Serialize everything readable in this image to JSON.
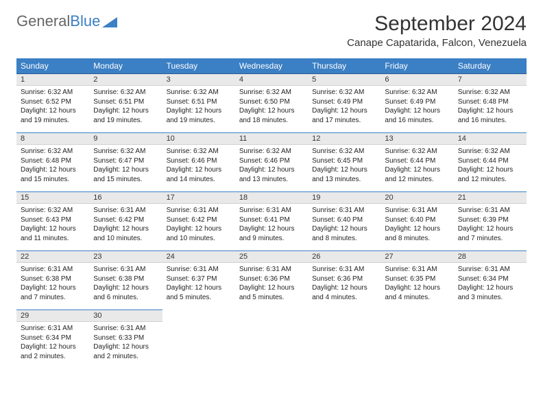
{
  "brand": {
    "part1": "General",
    "part2": "Blue"
  },
  "title": "September 2024",
  "location": "Canape Capatarida, Falcon, Venezuela",
  "colors": {
    "header_bg": "#3b7fc4",
    "header_fg": "#ffffff",
    "daynum_bg": "#e9e9e9",
    "row_border": "#3b7fc4",
    "text": "#222222"
  },
  "weekdays": [
    "Sunday",
    "Monday",
    "Tuesday",
    "Wednesday",
    "Thursday",
    "Friday",
    "Saturday"
  ],
  "weeks": [
    [
      {
        "n": "1",
        "sr": "Sunrise: 6:32 AM",
        "ss": "Sunset: 6:52 PM",
        "d1": "Daylight: 12 hours",
        "d2": "and 19 minutes."
      },
      {
        "n": "2",
        "sr": "Sunrise: 6:32 AM",
        "ss": "Sunset: 6:51 PM",
        "d1": "Daylight: 12 hours",
        "d2": "and 19 minutes."
      },
      {
        "n": "3",
        "sr": "Sunrise: 6:32 AM",
        "ss": "Sunset: 6:51 PM",
        "d1": "Daylight: 12 hours",
        "d2": "and 19 minutes."
      },
      {
        "n": "4",
        "sr": "Sunrise: 6:32 AM",
        "ss": "Sunset: 6:50 PM",
        "d1": "Daylight: 12 hours",
        "d2": "and 18 minutes."
      },
      {
        "n": "5",
        "sr": "Sunrise: 6:32 AM",
        "ss": "Sunset: 6:49 PM",
        "d1": "Daylight: 12 hours",
        "d2": "and 17 minutes."
      },
      {
        "n": "6",
        "sr": "Sunrise: 6:32 AM",
        "ss": "Sunset: 6:49 PM",
        "d1": "Daylight: 12 hours",
        "d2": "and 16 minutes."
      },
      {
        "n": "7",
        "sr": "Sunrise: 6:32 AM",
        "ss": "Sunset: 6:48 PM",
        "d1": "Daylight: 12 hours",
        "d2": "and 16 minutes."
      }
    ],
    [
      {
        "n": "8",
        "sr": "Sunrise: 6:32 AM",
        "ss": "Sunset: 6:48 PM",
        "d1": "Daylight: 12 hours",
        "d2": "and 15 minutes."
      },
      {
        "n": "9",
        "sr": "Sunrise: 6:32 AM",
        "ss": "Sunset: 6:47 PM",
        "d1": "Daylight: 12 hours",
        "d2": "and 15 minutes."
      },
      {
        "n": "10",
        "sr": "Sunrise: 6:32 AM",
        "ss": "Sunset: 6:46 PM",
        "d1": "Daylight: 12 hours",
        "d2": "and 14 minutes."
      },
      {
        "n": "11",
        "sr": "Sunrise: 6:32 AM",
        "ss": "Sunset: 6:46 PM",
        "d1": "Daylight: 12 hours",
        "d2": "and 13 minutes."
      },
      {
        "n": "12",
        "sr": "Sunrise: 6:32 AM",
        "ss": "Sunset: 6:45 PM",
        "d1": "Daylight: 12 hours",
        "d2": "and 13 minutes."
      },
      {
        "n": "13",
        "sr": "Sunrise: 6:32 AM",
        "ss": "Sunset: 6:44 PM",
        "d1": "Daylight: 12 hours",
        "d2": "and 12 minutes."
      },
      {
        "n": "14",
        "sr": "Sunrise: 6:32 AM",
        "ss": "Sunset: 6:44 PM",
        "d1": "Daylight: 12 hours",
        "d2": "and 12 minutes."
      }
    ],
    [
      {
        "n": "15",
        "sr": "Sunrise: 6:32 AM",
        "ss": "Sunset: 6:43 PM",
        "d1": "Daylight: 12 hours",
        "d2": "and 11 minutes."
      },
      {
        "n": "16",
        "sr": "Sunrise: 6:31 AM",
        "ss": "Sunset: 6:42 PM",
        "d1": "Daylight: 12 hours",
        "d2": "and 10 minutes."
      },
      {
        "n": "17",
        "sr": "Sunrise: 6:31 AM",
        "ss": "Sunset: 6:42 PM",
        "d1": "Daylight: 12 hours",
        "d2": "and 10 minutes."
      },
      {
        "n": "18",
        "sr": "Sunrise: 6:31 AM",
        "ss": "Sunset: 6:41 PM",
        "d1": "Daylight: 12 hours",
        "d2": "and 9 minutes."
      },
      {
        "n": "19",
        "sr": "Sunrise: 6:31 AM",
        "ss": "Sunset: 6:40 PM",
        "d1": "Daylight: 12 hours",
        "d2": "and 8 minutes."
      },
      {
        "n": "20",
        "sr": "Sunrise: 6:31 AM",
        "ss": "Sunset: 6:40 PM",
        "d1": "Daylight: 12 hours",
        "d2": "and 8 minutes."
      },
      {
        "n": "21",
        "sr": "Sunrise: 6:31 AM",
        "ss": "Sunset: 6:39 PM",
        "d1": "Daylight: 12 hours",
        "d2": "and 7 minutes."
      }
    ],
    [
      {
        "n": "22",
        "sr": "Sunrise: 6:31 AM",
        "ss": "Sunset: 6:38 PM",
        "d1": "Daylight: 12 hours",
        "d2": "and 7 minutes."
      },
      {
        "n": "23",
        "sr": "Sunrise: 6:31 AM",
        "ss": "Sunset: 6:38 PM",
        "d1": "Daylight: 12 hours",
        "d2": "and 6 minutes."
      },
      {
        "n": "24",
        "sr": "Sunrise: 6:31 AM",
        "ss": "Sunset: 6:37 PM",
        "d1": "Daylight: 12 hours",
        "d2": "and 5 minutes."
      },
      {
        "n": "25",
        "sr": "Sunrise: 6:31 AM",
        "ss": "Sunset: 6:36 PM",
        "d1": "Daylight: 12 hours",
        "d2": "and 5 minutes."
      },
      {
        "n": "26",
        "sr": "Sunrise: 6:31 AM",
        "ss": "Sunset: 6:36 PM",
        "d1": "Daylight: 12 hours",
        "d2": "and 4 minutes."
      },
      {
        "n": "27",
        "sr": "Sunrise: 6:31 AM",
        "ss": "Sunset: 6:35 PM",
        "d1": "Daylight: 12 hours",
        "d2": "and 4 minutes."
      },
      {
        "n": "28",
        "sr": "Sunrise: 6:31 AM",
        "ss": "Sunset: 6:34 PM",
        "d1": "Daylight: 12 hours",
        "d2": "and 3 minutes."
      }
    ],
    [
      {
        "n": "29",
        "sr": "Sunrise: 6:31 AM",
        "ss": "Sunset: 6:34 PM",
        "d1": "Daylight: 12 hours",
        "d2": "and 2 minutes."
      },
      {
        "n": "30",
        "sr": "Sunrise: 6:31 AM",
        "ss": "Sunset: 6:33 PM",
        "d1": "Daylight: 12 hours",
        "d2": "and 2 minutes."
      },
      {
        "empty": true
      },
      {
        "empty": true
      },
      {
        "empty": true
      },
      {
        "empty": true
      },
      {
        "empty": true
      }
    ]
  ]
}
